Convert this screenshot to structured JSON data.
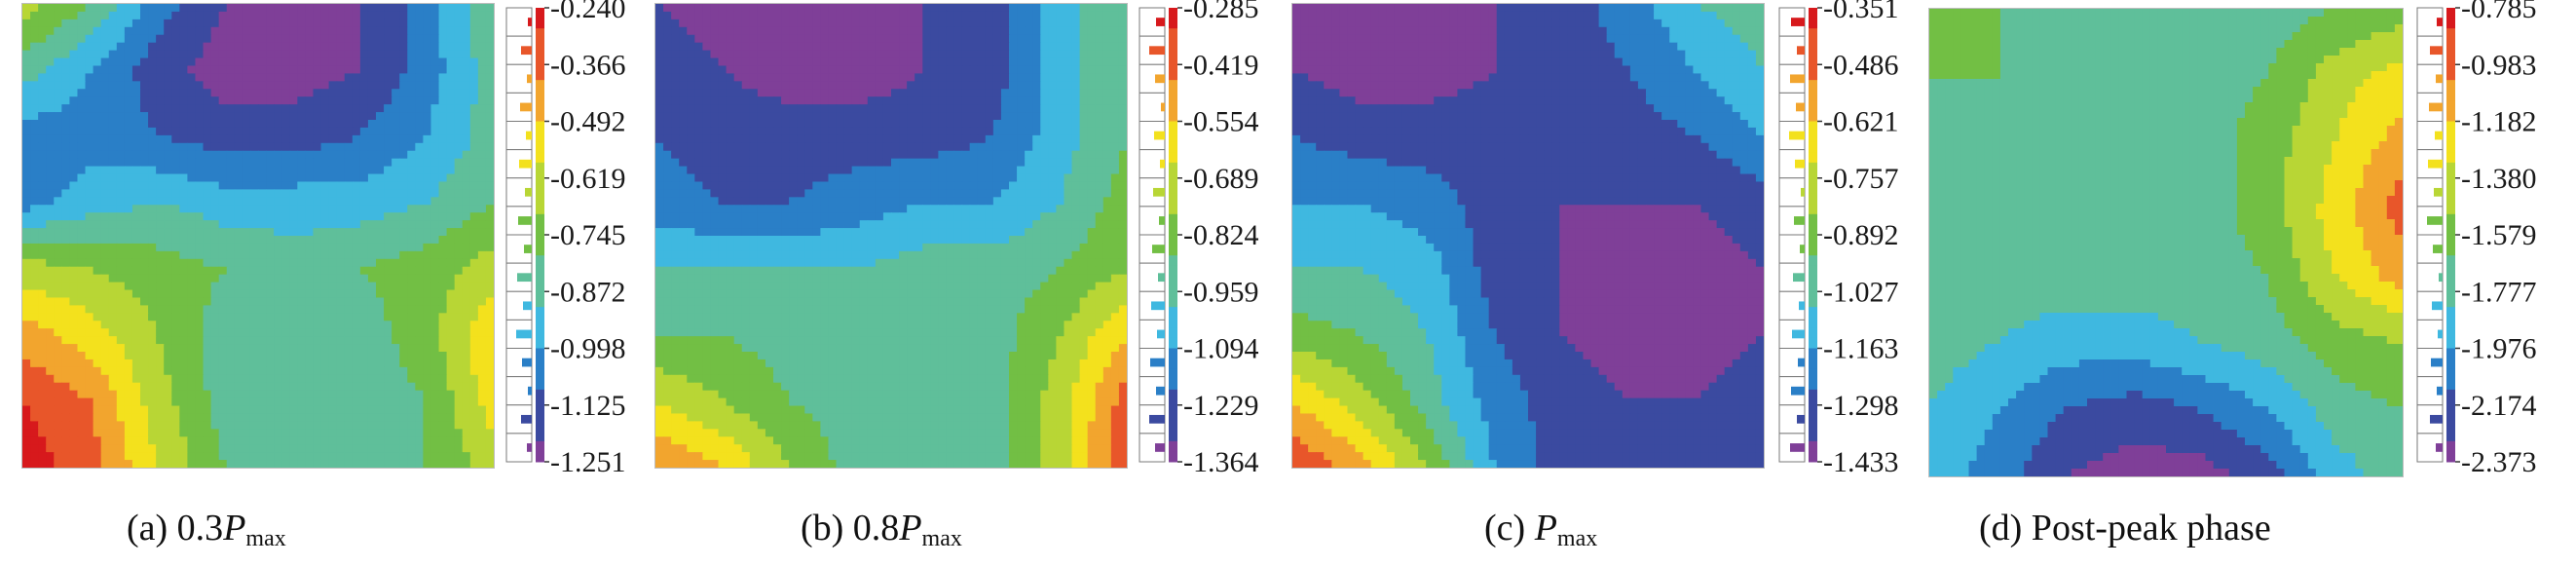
{
  "chart_data": [
    {
      "type": "heatmap",
      "caption": {
        "prefix": "(a) 0.3",
        "symbol": "P",
        "subscript": "max"
      },
      "colorbar_ticks": [
        "-0.240",
        "-0.366",
        "-0.492",
        "-0.619",
        "-0.745",
        "-0.872",
        "-0.998",
        "-1.125",
        "-1.251"
      ],
      "value_range": [
        -1.251,
        -0.24
      ],
      "field": [
        [
          0.6,
          0.45,
          0.2,
          0.05,
          0.0,
          0.05,
          0.2,
          0.45
        ],
        [
          0.4,
          0.25,
          0.1,
          0.0,
          0.0,
          0.05,
          0.2,
          0.4
        ],
        [
          0.2,
          0.2,
          0.15,
          0.1,
          0.1,
          0.15,
          0.25,
          0.4
        ],
        [
          0.2,
          0.3,
          0.35,
          0.3,
          0.3,
          0.3,
          0.35,
          0.45
        ],
        [
          0.6,
          0.55,
          0.5,
          0.45,
          0.4,
          0.45,
          0.5,
          0.6
        ],
        [
          0.8,
          0.7,
          0.55,
          0.4,
          0.4,
          0.4,
          0.5,
          0.75
        ],
        [
          0.95,
          0.85,
          0.6,
          0.4,
          0.4,
          0.4,
          0.45,
          0.7
        ],
        [
          1.0,
          0.9,
          0.65,
          0.45,
          0.4,
          0.4,
          0.45,
          0.6
        ]
      ]
    },
    {
      "type": "heatmap",
      "caption": {
        "prefix": "(b) 0.8",
        "symbol": "P",
        "subscript": "max"
      },
      "colorbar_ticks": [
        "-0.285",
        "-0.419",
        "-0.554",
        "-0.689",
        "-0.824",
        "-0.959",
        "-1.094",
        "-1.229",
        "-1.364"
      ],
      "value_range": [
        -1.364,
        -0.285
      ],
      "field": [
        [
          0.05,
          0.0,
          0.0,
          0.05,
          0.05,
          0.1,
          0.3,
          0.45
        ],
        [
          0.1,
          0.05,
          0.0,
          0.0,
          0.05,
          0.1,
          0.3,
          0.45
        ],
        [
          0.15,
          0.1,
          0.1,
          0.1,
          0.1,
          0.15,
          0.3,
          0.45
        ],
        [
          0.2,
          0.15,
          0.15,
          0.2,
          0.25,
          0.25,
          0.35,
          0.5
        ],
        [
          0.35,
          0.35,
          0.35,
          0.35,
          0.4,
          0.4,
          0.45,
          0.55
        ],
        [
          0.45,
          0.45,
          0.4,
          0.4,
          0.4,
          0.4,
          0.55,
          0.75
        ],
        [
          0.65,
          0.55,
          0.45,
          0.4,
          0.4,
          0.4,
          0.6,
          0.9
        ],
        [
          0.85,
          0.75,
          0.55,
          0.4,
          0.4,
          0.4,
          0.6,
          0.95
        ]
      ]
    },
    {
      "type": "heatmap",
      "caption": {
        "prefix": "(c) ",
        "symbol": "P",
        "subscript": "max"
      },
      "colorbar_ticks": [
        "-0.351",
        "-0.486",
        "-0.621",
        "-0.757",
        "-0.892",
        "-1.027",
        "-1.163",
        "-1.298",
        "-1.433"
      ],
      "value_range": [
        -1.433,
        -0.351
      ],
      "field": [
        [
          0.05,
          0.0,
          0.0,
          0.05,
          0.1,
          0.2,
          0.35,
          0.4
        ],
        [
          0.05,
          0.0,
          0.0,
          0.05,
          0.1,
          0.15,
          0.25,
          0.35
        ],
        [
          0.15,
          0.1,
          0.1,
          0.1,
          0.1,
          0.1,
          0.15,
          0.25
        ],
        [
          0.25,
          0.25,
          0.2,
          0.1,
          0.05,
          0.05,
          0.05,
          0.1
        ],
        [
          0.35,
          0.35,
          0.3,
          0.1,
          0.05,
          0.0,
          0.0,
          0.05
        ],
        [
          0.5,
          0.45,
          0.35,
          0.15,
          0.05,
          0.0,
          0.0,
          0.05
        ],
        [
          0.75,
          0.6,
          0.4,
          0.2,
          0.1,
          0.05,
          0.05,
          0.1
        ],
        [
          0.95,
          0.8,
          0.55,
          0.25,
          0.1,
          0.1,
          0.1,
          0.1
        ]
      ]
    },
    {
      "type": "heatmap",
      "caption": {
        "prefix": "(d) Post-peak phase",
        "symbol": "",
        "subscript": ""
      },
      "colorbar_ticks": [
        "-0.785",
        "-0.983",
        "-1.182",
        "-1.380",
        "-1.579",
        "-1.777",
        "-1.976",
        "-2.174",
        "-2.373"
      ],
      "value_range": [
        -2.373,
        -0.785
      ],
      "field": [
        [
          0.45,
          0.45,
          0.45,
          0.45,
          0.4,
          0.4,
          0.45,
          0.5
        ],
        [
          0.45,
          0.45,
          0.4,
          0.4,
          0.4,
          0.45,
          0.6,
          0.7
        ],
        [
          0.4,
          0.4,
          0.4,
          0.4,
          0.4,
          0.5,
          0.65,
          0.8
        ],
        [
          0.4,
          0.4,
          0.4,
          0.4,
          0.4,
          0.5,
          0.7,
          0.9
        ],
        [
          0.4,
          0.4,
          0.4,
          0.4,
          0.4,
          0.45,
          0.65,
          0.8
        ],
        [
          0.4,
          0.35,
          0.3,
          0.3,
          0.35,
          0.4,
          0.5,
          0.55
        ],
        [
          0.35,
          0.25,
          0.15,
          0.1,
          0.15,
          0.25,
          0.4,
          0.45
        ],
        [
          0.3,
          0.2,
          0.05,
          0.0,
          0.0,
          0.1,
          0.3,
          0.4
        ]
      ]
    }
  ],
  "colormap": [
    "#7f3f98",
    "#3b4aa0",
    "#2a7fc7",
    "#3fb8e0",
    "#5fbf9a",
    "#72bf44",
    "#b8d635",
    "#f3e11d",
    "#f2a52e",
    "#e8562a",
    "#d7191c"
  ]
}
